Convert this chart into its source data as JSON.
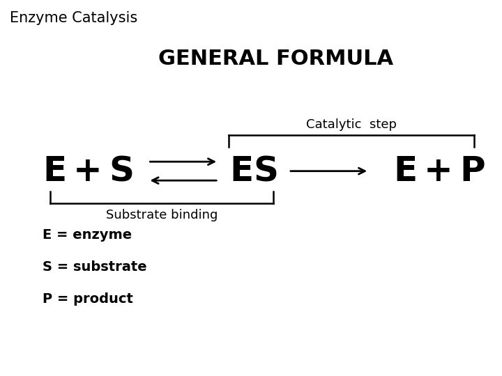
{
  "title": "Enzyme Catalysis",
  "subtitle": "GENERAL FORMULA",
  "catalytic_label": "Catalytic  step",
  "substrate_label": "Substrate binding",
  "legend": [
    "E = enzyme",
    "S = substrate",
    "P = product"
  ],
  "bg_color": "#ffffff",
  "text_color": "#000000",
  "title_fontsize": 15,
  "subtitle_fontsize": 22,
  "formula_fontsize": 36,
  "label_fontsize": 13,
  "legend_fontsize": 14
}
